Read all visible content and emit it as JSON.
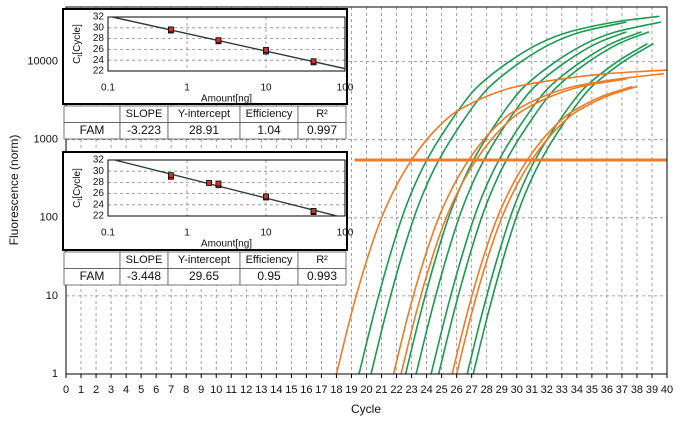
{
  "chart_data": [
    {
      "type": "line",
      "xlabel": "Cycle",
      "ylabel": "Fluorescence (norm)",
      "log_y": true,
      "grid": true,
      "xlim": [
        0,
        40
      ],
      "xticks": [
        0,
        1,
        2,
        3,
        4,
        5,
        6,
        7,
        8,
        9,
        10,
        11,
        12,
        13,
        14,
        15,
        16,
        17,
        18,
        19,
        20,
        21,
        22,
        23,
        24,
        25,
        26,
        27,
        28,
        29,
        30,
        31,
        32,
        33,
        34,
        35,
        36,
        37,
        38,
        39,
        40
      ],
      "ylim": [
        1,
        50000
      ],
      "yticks": [
        1,
        10,
        100,
        1000,
        10000
      ],
      "threshold": {
        "value": 550,
        "x_start": 19.2,
        "color": "#f07a26"
      },
      "series": [
        {
          "color": "#1a9a50",
          "x": [
            19.5,
            20.5,
            21.5,
            22.5,
            23.5,
            24.5,
            25.5,
            26.5,
            27.5,
            29.5,
            31.5,
            33.5,
            36.5,
            39.5
          ],
          "values": [
            1,
            6,
            30,
            120,
            350,
            800,
            1600,
            3000,
            5000,
            10000,
            17000,
            24000,
            32000,
            38000
          ]
        },
        {
          "color": "#1a9a50",
          "x": [
            20.3,
            21.3,
            22.3,
            23.3,
            24.3,
            25.3,
            26.3,
            27.3,
            28.3,
            30.3,
            32.3,
            34.3,
            37.3
          ],
          "values": [
            1,
            6,
            30,
            120,
            350,
            800,
            1600,
            3000,
            5000,
            10000,
            17000,
            24000,
            32000
          ]
        },
        {
          "color": "#1a9a50",
          "x": [
            22.6,
            23.6,
            24.6,
            25.6,
            26.6,
            27.6,
            28.6,
            29.6,
            30.6,
            32.6,
            34.6,
            36.6,
            39.6
          ],
          "values": [
            1,
            6,
            30,
            120,
            350,
            800,
            1600,
            3000,
            5000,
            10000,
            17000,
            24000,
            32000
          ]
        },
        {
          "color": "#1a9a50",
          "x": [
            23.3,
            24.3,
            25.3,
            26.3,
            27.3,
            28.3,
            29.3,
            30.3,
            31.3,
            33.3,
            35.3,
            37.3
          ],
          "values": [
            1,
            6,
            30,
            120,
            350,
            800,
            1600,
            3000,
            5000,
            10000,
            17000,
            24000
          ]
        },
        {
          "color": "#1a9a50",
          "x": [
            24.3,
            25.3,
            26.3,
            27.3,
            28.3,
            29.3,
            30.3,
            31.3,
            32.3,
            34.3,
            36.3,
            38.3
          ],
          "values": [
            1,
            6,
            30,
            120,
            350,
            800,
            1600,
            3000,
            5000,
            10000,
            17000,
            24000
          ]
        },
        {
          "color": "#1a9a50",
          "x": [
            24.8,
            25.8,
            26.8,
            27.8,
            28.8,
            29.8,
            30.8,
            31.8,
            32.8,
            34.8,
            36.8,
            38.8
          ],
          "values": [
            1,
            6,
            30,
            120,
            350,
            800,
            1600,
            3000,
            5000,
            10000,
            17000,
            24000
          ]
        },
        {
          "color": "#1a9a50",
          "x": [
            26.7,
            27.7,
            28.7,
            29.7,
            30.7,
            31.7,
            32.7,
            33.7,
            34.7,
            36.7,
            38.7
          ],
          "values": [
            1,
            6,
            30,
            120,
            350,
            800,
            1600,
            3000,
            5000,
            10000,
            17000
          ]
        },
        {
          "color": "#1a9a50",
          "x": [
            27.1,
            28.1,
            29.1,
            30.1,
            31.1,
            32.1,
            33.1,
            34.1,
            35.1,
            37.1,
            39.1
          ],
          "values": [
            1,
            6,
            30,
            120,
            350,
            800,
            1600,
            3000,
            5000,
            10000,
            17000
          ]
        },
        {
          "color": "#f07a26",
          "x": [
            18,
            19,
            20,
            21,
            22,
            23,
            24,
            25,
            26,
            28,
            30,
            33,
            36,
            40
          ],
          "values": [
            1,
            6,
            28,
            100,
            260,
            550,
            1000,
            1600,
            2300,
            3600,
            4800,
            6000,
            7000,
            7800
          ]
        },
        {
          "color": "#f07a26",
          "x": [
            21.8,
            22.8,
            23.8,
            24.8,
            25.8,
            26.8,
            27.8,
            28.8,
            29.8,
            31.8,
            33.8,
            36.8,
            39.8
          ],
          "values": [
            1,
            6,
            28,
            100,
            260,
            550,
            1000,
            1600,
            2300,
            3600,
            4800,
            6000,
            7000
          ]
        },
        {
          "color": "#f07a26",
          "x": [
            22.3,
            23.3,
            24.3,
            25.3,
            26.3,
            27.3,
            28.3,
            29.3,
            30.3,
            32.3,
            34.3,
            37.3
          ],
          "values": [
            1,
            6,
            28,
            100,
            260,
            550,
            1000,
            1600,
            2300,
            3600,
            4800,
            6000
          ]
        },
        {
          "color": "#f07a26",
          "x": [
            25.7,
            26.7,
            27.7,
            28.7,
            29.7,
            30.7,
            31.7,
            32.7,
            33.7,
            35.7,
            37.7
          ],
          "values": [
            1,
            6,
            28,
            100,
            260,
            550,
            1000,
            1600,
            2300,
            3600,
            4800
          ]
        },
        {
          "color": "#f07a26",
          "x": [
            26,
            27,
            28,
            29,
            30,
            31,
            32,
            33,
            34,
            36,
            38
          ],
          "values": [
            1,
            6,
            28,
            100,
            260,
            550,
            1000,
            1600,
            2300,
            3600,
            4800
          ]
        }
      ]
    },
    {
      "type": "scatter",
      "xlabel": "Amount[ng]",
      "ylabel": [
        "C",
        "t",
        "[Cycle]"
      ],
      "log_x": true,
      "grid": true,
      "xlim": [
        0.1,
        100
      ],
      "xticks": [
        0.1,
        1,
        10,
        100
      ],
      "ylim": [
        22,
        32
      ],
      "yticks": [
        22,
        24,
        26,
        28,
        30,
        32
      ],
      "color": "#c0392b",
      "x": [
        0.625,
        0.625,
        2.5,
        2.5,
        10,
        10,
        40,
        40
      ],
      "values": [
        29.5,
        29.7,
        27.5,
        27.7,
        25.6,
        25.9,
        23.6,
        23.8
      ],
      "table": {
        "columns": [
          "SLOPE",
          "Y-intercept",
          "Efficiency",
          "R²"
        ],
        "rows": [
          [
            "FAM",
            -3.223,
            28.91,
            1.04,
            0.997
          ]
        ]
      }
    },
    {
      "type": "scatter",
      "xlabel": "Amount[ng]",
      "ylabel": [
        "C",
        "t",
        "[Cycle]"
      ],
      "log_x": true,
      "grid": true,
      "xlim": [
        0.1,
        100
      ],
      "xticks": [
        0.1,
        1,
        10,
        100
      ],
      "ylim": [
        22,
        32
      ],
      "yticks": [
        22,
        24,
        26,
        28,
        30,
        32
      ],
      "color": "#c0392b",
      "x": [
        0.625,
        0.625,
        1.9,
        2.5,
        2.5,
        10,
        10,
        40,
        40
      ],
      "values": [
        29.0,
        29.3,
        27.9,
        27.5,
        27.8,
        25.3,
        25.5,
        22.7,
        22.9
      ],
      "table": {
        "columns": [
          "SLOPE",
          "Y-intercept",
          "Efficiency",
          "R²"
        ],
        "rows": [
          [
            "FAM",
            -3.448,
            29.65,
            0.95,
            0.993
          ]
        ]
      }
    }
  ]
}
